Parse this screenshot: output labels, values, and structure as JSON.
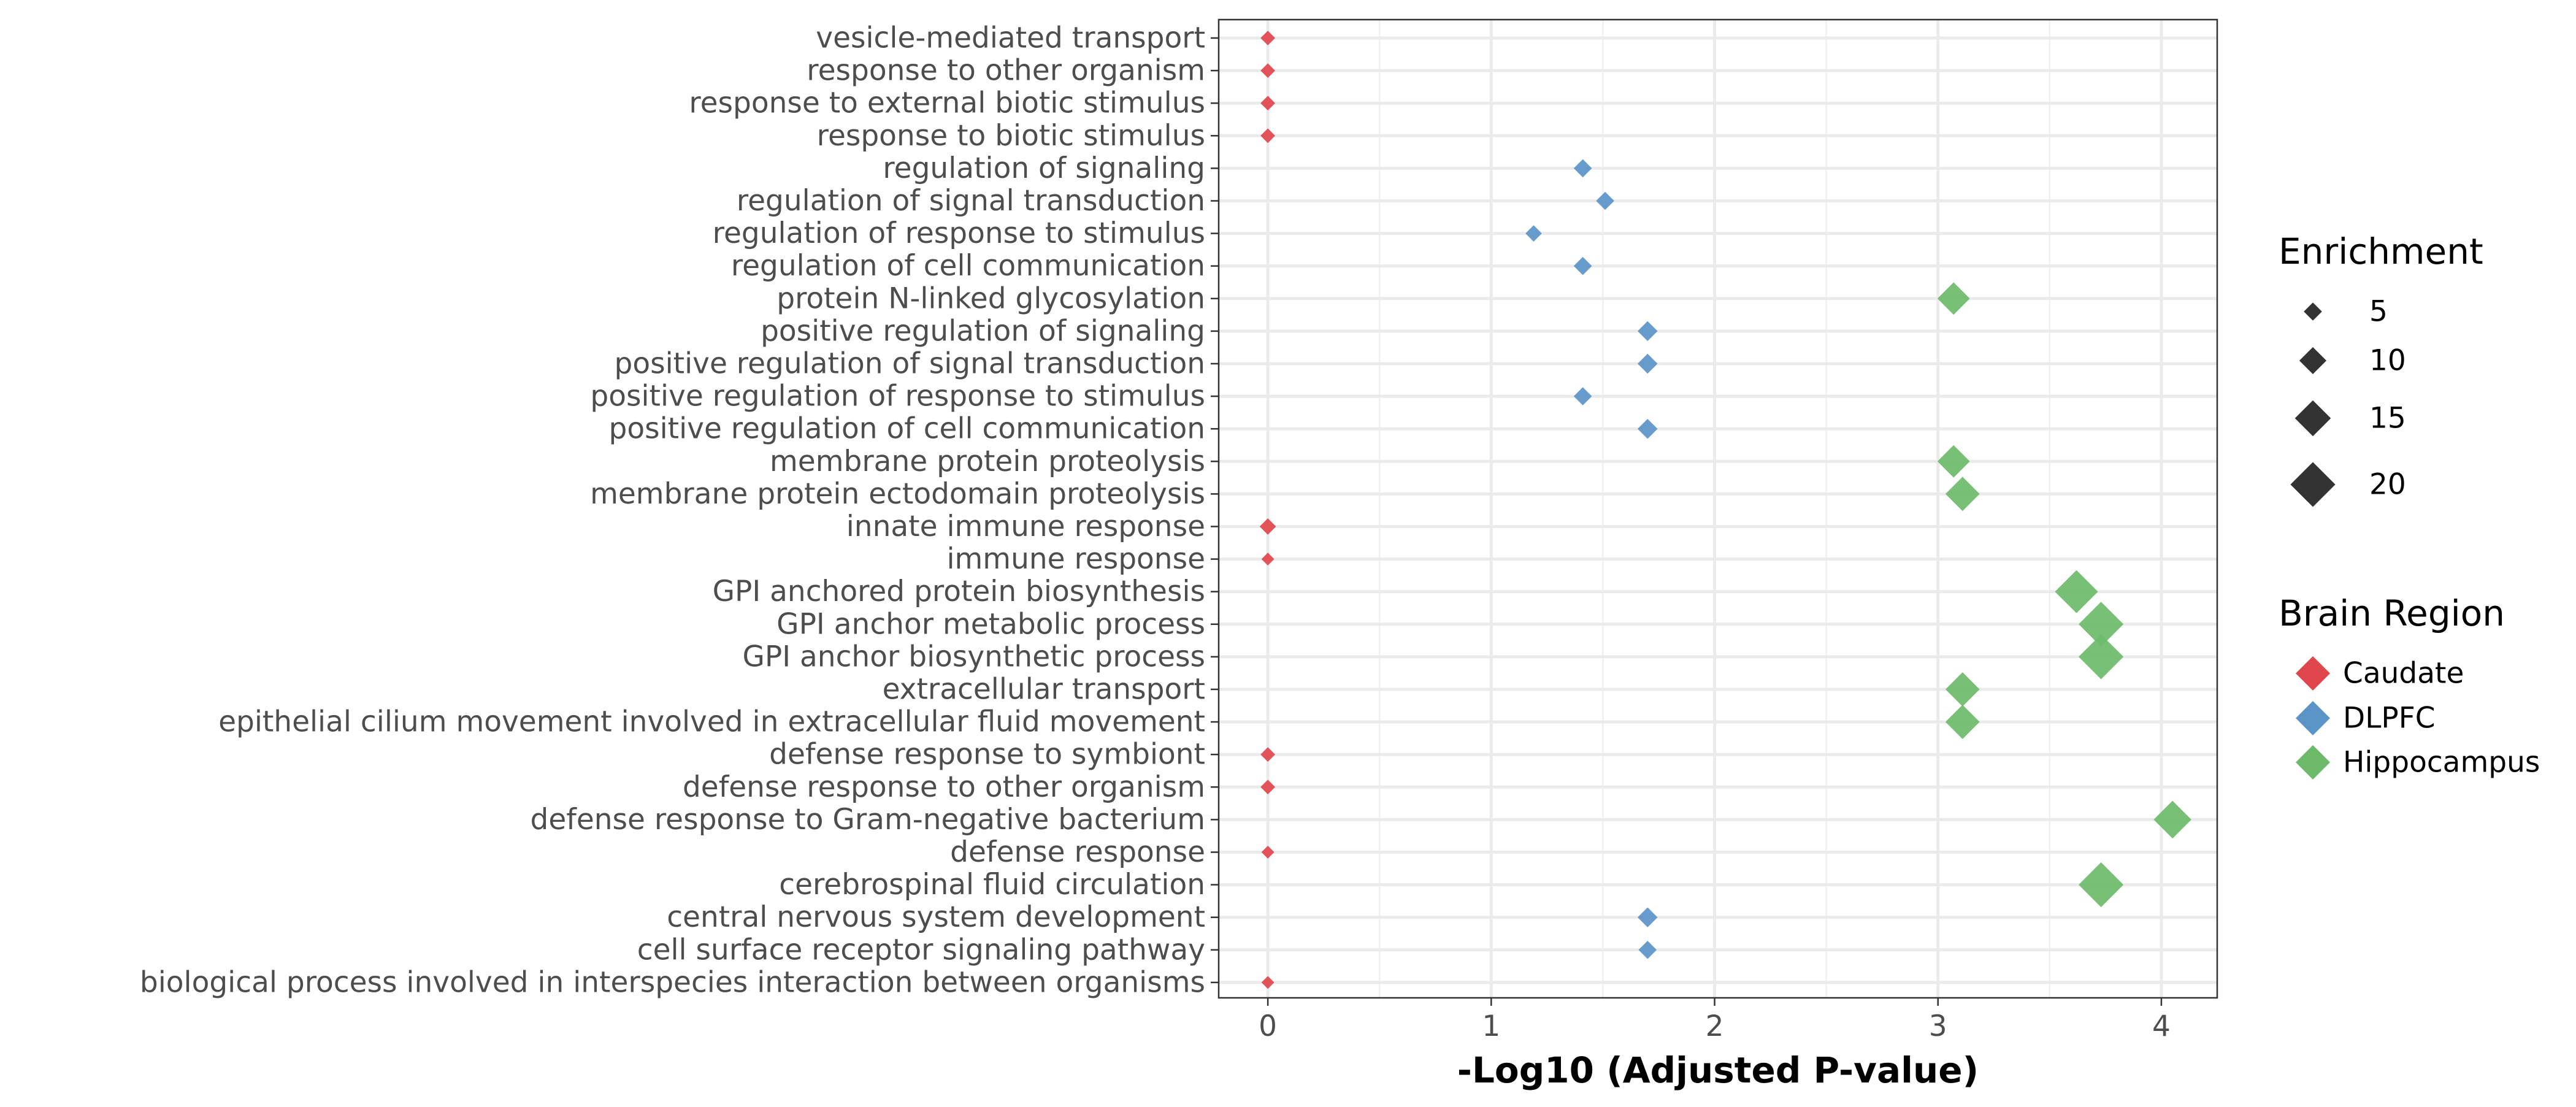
{
  "chart_data": {
    "type": "scatter",
    "title": "",
    "xlabel": "-Log10 (Adjusted P-value)",
    "ylabel": "",
    "xlim": [
      -0.22,
      4.25
    ],
    "x_ticks": [
      0,
      1,
      2,
      3,
      4
    ],
    "grid": true,
    "legend_position": "right",
    "marker": "diamond",
    "terms": [
      "vesicle-mediated transport",
      "response to other organism",
      "response to external biotic stimulus",
      "response to biotic stimulus",
      "regulation of signaling",
      "regulation of signal transduction",
      "regulation of response to stimulus",
      "regulation of cell communication",
      "protein N-linked glycosylation",
      "positive regulation of signaling",
      "positive regulation of signal transduction",
      "positive regulation of response to stimulus",
      "positive regulation of cell communication",
      "membrane protein proteolysis",
      "membrane protein ectodomain proteolysis",
      "innate immune response",
      "immune response",
      "GPI anchored protein biosynthesis",
      "GPI anchor metabolic process",
      "GPI anchor biosynthetic process",
      "extracellular transport",
      "epithelial cilium movement involved in extracellular fluid movement",
      "defense response to symbiont",
      "defense response to other organism",
      "defense response to Gram-negative bacterium",
      "defense response",
      "cerebrospinal fluid circulation",
      "central nervous system development",
      "cell surface receptor signaling pathway",
      "biological process involved in interspecies interaction between organisms"
    ],
    "size_legend": {
      "title": "Enrichment",
      "values": [
        5,
        10,
        15,
        20
      ],
      "color": "#333333"
    },
    "color_legend": {
      "title": "Brain Region",
      "entries": [
        {
          "name": "Caudate",
          "color": "#e0474c"
        },
        {
          "name": "DLPFC",
          "color": "#5b95c8"
        },
        {
          "name": "Hippocampus",
          "color": "#6dbb6a"
        }
      ]
    },
    "points": [
      {
        "term": "vesicle-mediated transport",
        "x": 0.0,
        "enrichment": 3,
        "region": "Caudate"
      },
      {
        "term": "response to other organism",
        "x": 0.0,
        "enrichment": 3,
        "region": "Caudate"
      },
      {
        "term": "response to external biotic stimulus",
        "x": 0.0,
        "enrichment": 3,
        "region": "Caudate"
      },
      {
        "term": "response to biotic stimulus",
        "x": 0.0,
        "enrichment": 3,
        "region": "Caudate"
      },
      {
        "term": "regulation of signaling",
        "x": 1.41,
        "enrichment": 5,
        "region": "DLPFC"
      },
      {
        "term": "regulation of signal transduction",
        "x": 1.51,
        "enrichment": 5,
        "region": "DLPFC"
      },
      {
        "term": "regulation of response to stimulus",
        "x": 1.19,
        "enrichment": 4,
        "region": "DLPFC"
      },
      {
        "term": "regulation of cell communication",
        "x": 1.41,
        "enrichment": 5,
        "region": "DLPFC"
      },
      {
        "term": "protein N-linked glycosylation",
        "x": 3.07,
        "enrichment": 13,
        "region": "Hippocampus"
      },
      {
        "term": "positive regulation of signaling",
        "x": 1.7,
        "enrichment": 6,
        "region": "DLPFC"
      },
      {
        "term": "positive regulation of signal transduction",
        "x": 1.7,
        "enrichment": 6,
        "region": "DLPFC"
      },
      {
        "term": "positive regulation of response to stimulus",
        "x": 1.41,
        "enrichment": 5,
        "region": "DLPFC"
      },
      {
        "term": "positive regulation of cell communication",
        "x": 1.7,
        "enrichment": 6,
        "region": "DLPFC"
      },
      {
        "term": "membrane protein proteolysis",
        "x": 3.07,
        "enrichment": 13,
        "region": "Hippocampus"
      },
      {
        "term": "membrane protein ectodomain proteolysis",
        "x": 3.11,
        "enrichment": 14,
        "region": "Hippocampus"
      },
      {
        "term": "innate immune response",
        "x": 0.0,
        "enrichment": 4,
        "region": "Caudate"
      },
      {
        "term": "immune response",
        "x": 0.0,
        "enrichment": 2,
        "region": "Caudate"
      },
      {
        "term": "GPI anchored protein biosynthesis",
        "x": 3.62,
        "enrichment": 19,
        "region": "Hippocampus"
      },
      {
        "term": "GPI anchor metabolic process",
        "x": 3.73,
        "enrichment": 20,
        "region": "Hippocampus"
      },
      {
        "term": "GPI anchor biosynthetic process",
        "x": 3.73,
        "enrichment": 20,
        "region": "Hippocampus"
      },
      {
        "term": "extracellular transport",
        "x": 3.11,
        "enrichment": 14,
        "region": "Hippocampus"
      },
      {
        "term": "epithelial cilium movement involved in extracellular fluid movement",
        "x": 3.11,
        "enrichment": 14,
        "region": "Hippocampus"
      },
      {
        "term": "defense response to symbiont",
        "x": 0.0,
        "enrichment": 3,
        "region": "Caudate"
      },
      {
        "term": "defense response to other organism",
        "x": 0.0,
        "enrichment": 3,
        "region": "Caudate"
      },
      {
        "term": "defense response to Gram-negative bacterium",
        "x": 4.05,
        "enrichment": 16,
        "region": "Hippocampus"
      },
      {
        "term": "defense response",
        "x": 0.0,
        "enrichment": 2,
        "region": "Caudate"
      },
      {
        "term": "cerebrospinal fluid circulation",
        "x": 3.73,
        "enrichment": 20,
        "region": "Hippocampus"
      },
      {
        "term": "central nervous system development",
        "x": 1.7,
        "enrichment": 6,
        "region": "DLPFC"
      },
      {
        "term": "cell surface receptor signaling pathway",
        "x": 1.7,
        "enrichment": 5,
        "region": "DLPFC"
      },
      {
        "term": "biological process involved in interspecies interaction between organisms",
        "x": 0.0,
        "enrichment": 2,
        "region": "Caudate"
      }
    ]
  }
}
